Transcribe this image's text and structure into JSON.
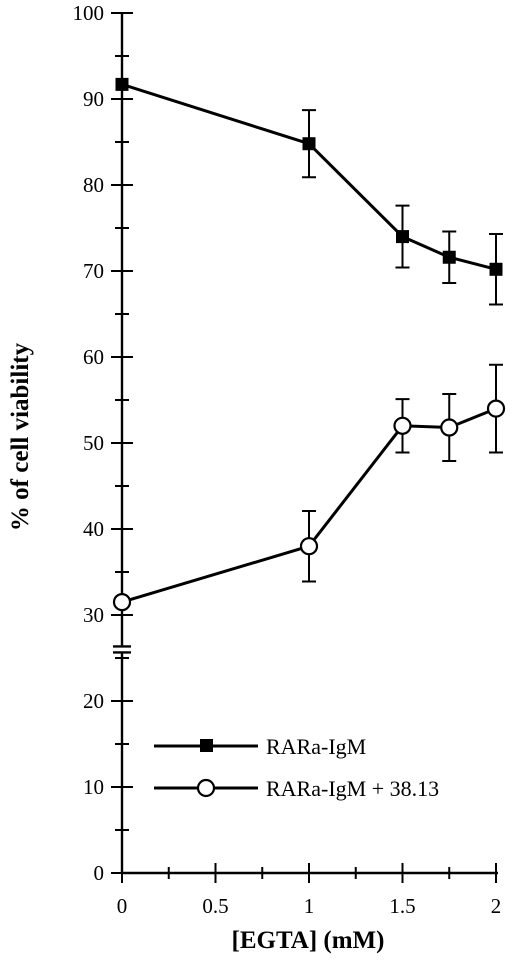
{
  "chart_data": {
    "type": "line",
    "title": "",
    "xlabel": "[EGTA] (mM)",
    "ylabel": "% of cell viability",
    "xlim": [
      0,
      2
    ],
    "ylim": [
      0,
      100
    ],
    "x_ticks": [
      "0",
      "0.5",
      "1",
      "1.5",
      "2"
    ],
    "y_ticks": [
      "0",
      "10",
      "20",
      "30",
      "40",
      "50",
      "60",
      "70",
      "80",
      "90",
      "100"
    ],
    "axis_break_y": 26,
    "legend_position": "bottom-right",
    "grid": false,
    "series": [
      {
        "name": "RARa-IgM",
        "marker": "filled-square",
        "x": [
          0,
          1,
          1.5,
          1.75,
          2
        ],
        "y": [
          91.7,
          84.8,
          74.0,
          71.6,
          70.2
        ],
        "error": [
          null,
          3.9,
          3.6,
          3.0,
          4.1
        ]
      },
      {
        "name": "RARa-IgM + 38.13",
        "marker": "open-circle",
        "x": [
          0,
          1,
          1.5,
          1.75,
          2
        ],
        "y": [
          31.5,
          38.0,
          52.0,
          51.8,
          54.0
        ],
        "error": [
          null,
          4.1,
          3.1,
          3.9,
          5.1
        ]
      }
    ]
  }
}
